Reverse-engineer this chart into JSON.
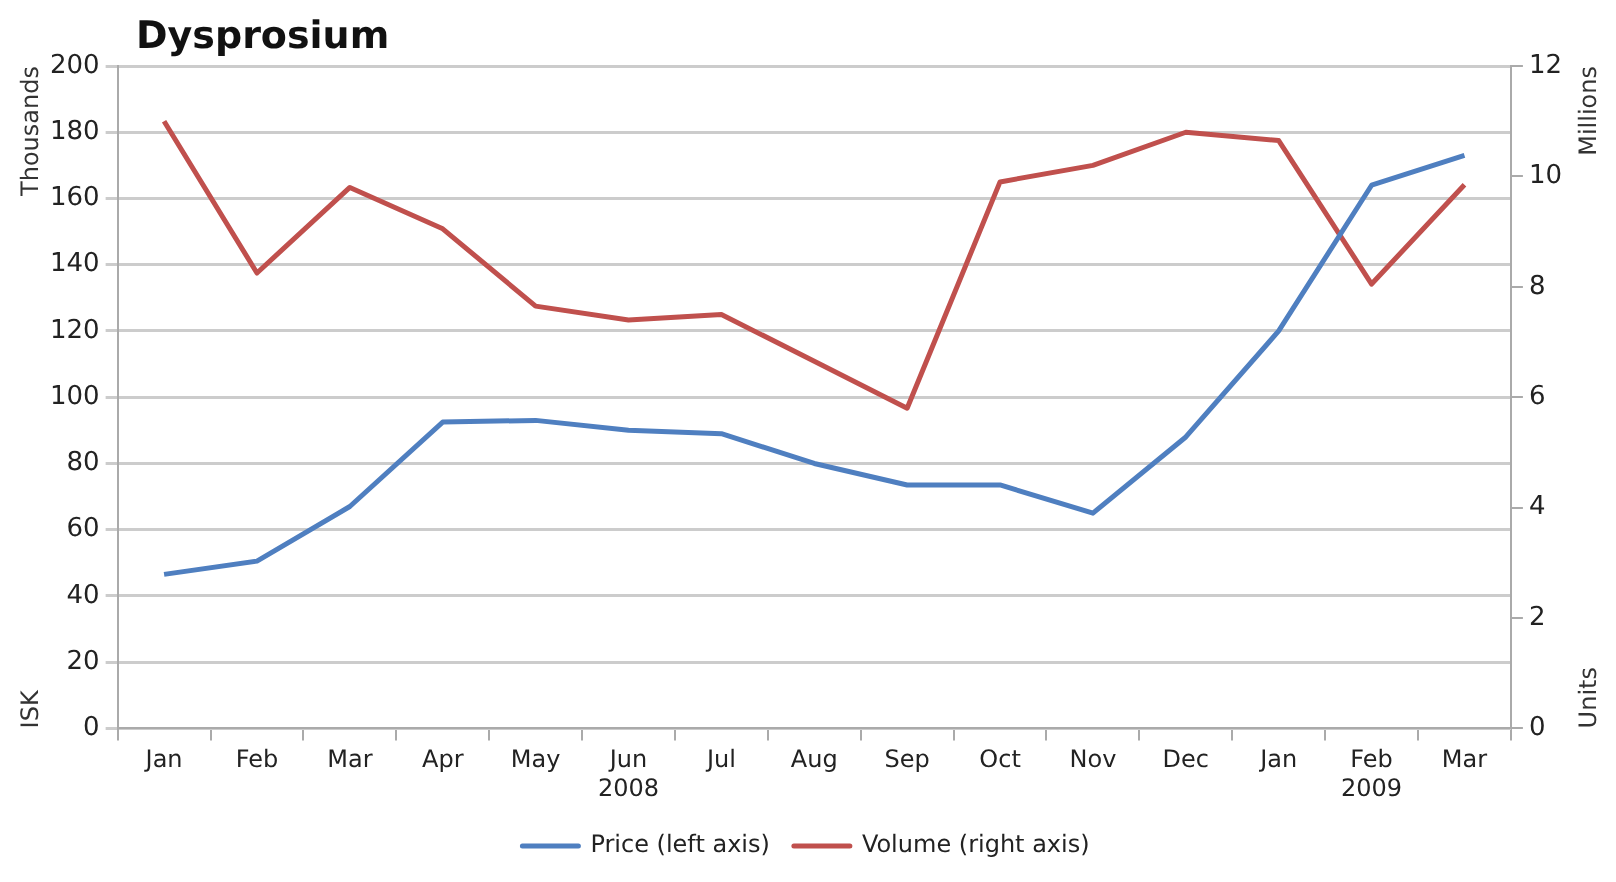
{
  "chart_data": {
    "type": "line",
    "title": "Dysprosium",
    "categories": [
      "Jan",
      "Feb",
      "Mar",
      "Apr",
      "May",
      "Jun\n2008",
      "Jul",
      "Aug",
      "Sep",
      "Oct",
      "Nov",
      "Dec",
      "Jan",
      "Feb\n2009",
      "Mar"
    ],
    "series": [
      {
        "name": "Price (left axis)",
        "color": "#4f7fc0",
        "values": [
          46.5,
          50.5,
          67,
          92.5,
          93,
          90,
          89,
          80,
          73.5,
          73.5,
          65,
          88,
          120,
          164,
          173
        ]
      },
      {
        "name": "Volume (right axis)",
        "color": "#c0504d",
        "axis": "y2",
        "values": [
          11.0,
          8.25,
          9.8,
          9.05,
          7.65,
          7.4,
          7.5,
          6.65,
          5.8,
          9.9,
          10.2,
          10.8,
          10.65,
          8.05,
          9.85
        ]
      }
    ],
    "ylabel": "Thousands",
    "y2label": "Millions",
    "annotations": [
      "ISK",
      "Units"
    ],
    "ylim": [
      0,
      200
    ],
    "yticks": [
      0,
      20,
      40,
      60,
      80,
      100,
      120,
      140,
      160,
      180,
      200
    ],
    "y2lim": [
      0,
      12
    ],
    "y2ticks": [
      0,
      2,
      4,
      6,
      8,
      10,
      12
    ],
    "grid": "y",
    "legend": "bottom",
    "marker": "none",
    "line_style": "solid"
  }
}
